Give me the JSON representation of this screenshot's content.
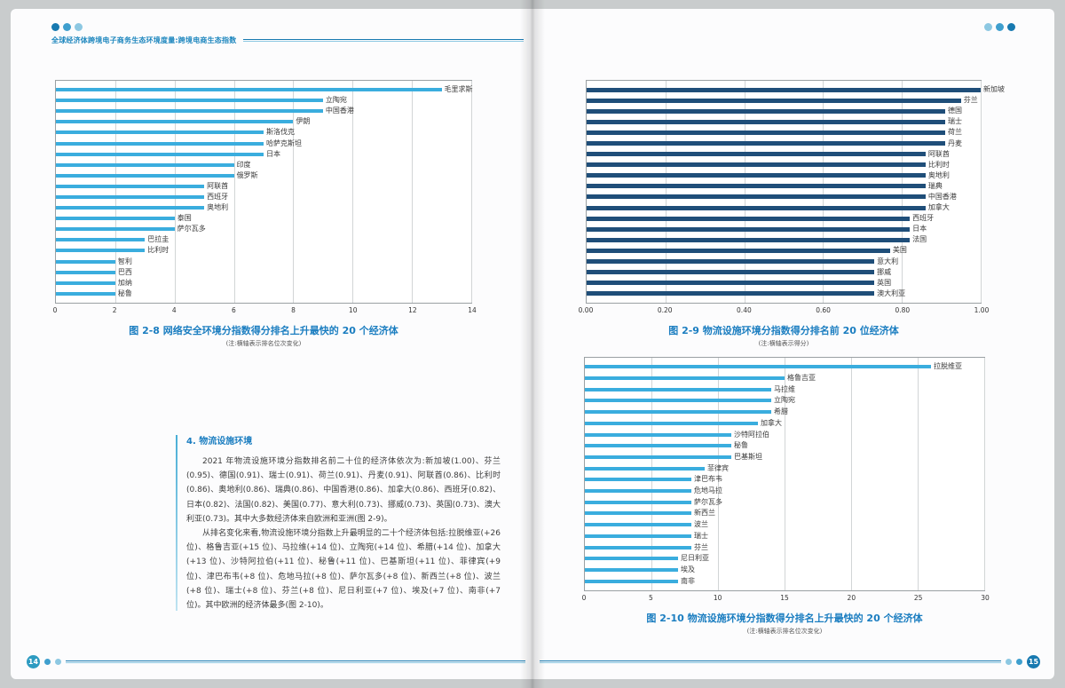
{
  "header": {
    "left_running_title": "全球经济体跨境电子商务生态环境度量:跨境电商生态指数"
  },
  "section": {
    "title": "4. 物流设施环境",
    "paragraphs": [
      "2021 年物流设施环境分指数排名前二十位的经济体依次为:新加坡(1.00)、芬兰(0.95)、德国(0.91)、瑞士(0.91)、荷兰(0.91)、丹麦(0.91)、阿联酋(0.86)、比利时(0.86)、奥地利(0.86)、瑞典(0.86)、中国香港(0.86)、加拿大(0.86)、西班牙(0.82)、日本(0.82)、法国(0.82)、美国(0.77)、意大利(0.73)、挪威(0.73)、英国(0.73)、澳大利亚(0.73)。其中大多数经济体来自欧洲和亚洲(图 2-9)。",
      "从排名变化来看,物流设施环境分指数上升最明显的二十个经济体包括:拉脱维亚(+26 位)、格鲁吉亚(+15 位)、马拉维(+14 位)、立陶宛(+14 位)、希腊(+14 位)、加拿大(+13 位)、沙特阿拉伯(+11 位)、秘鲁(+11 位)、巴基斯坦(+11 位)、菲律宾(+9 位)、津巴布韦(+8 位)、危地马拉(+8 位)、萨尔瓦多(+8 位)、新西兰(+8 位)、波兰(+8 位)、瑞士(+8 位)、芬兰(+8 位)、尼日利亚(+7 位)、埃及(+7 位)、南非(+7 位)。其中欧洲的经济体最多(图 2-10)。"
    ]
  },
  "footer": {
    "left_page_number": "14",
    "right_page_number": "15"
  },
  "colors": {
    "accent_teal": "#2d9bc1",
    "accent_dark_blue": "#1779b0",
    "accent_light_blue": "#8dc8e2",
    "caption_blue": "#1a7dc0",
    "bar_light_blue": "#3aadde",
    "bar_dark_blue": "#1f4e79"
  },
  "chart_data": [
    {
      "id": "figure-2-8",
      "type": "bar",
      "orientation": "horizontal",
      "title": "图 2-8 网络安全环境分指数得分排名上升最快的 20 个经济体",
      "note": "(注:横轴表示排名位次变化)",
      "categories": [
        "毛里求斯",
        "立陶宛",
        "中国香港",
        "伊朗",
        "斯洛伐克",
        "哈萨克斯坦",
        "日本",
        "印度",
        "俄罗斯",
        "阿联酋",
        "西班牙",
        "奥地利",
        "泰国",
        "萨尔瓦多",
        "巴拉圭",
        "比利时",
        "智利",
        "巴西",
        "加纳",
        "秘鲁"
      ],
      "values": [
        13,
        9,
        9,
        8,
        7,
        7,
        7,
        6,
        6,
        5,
        5,
        5,
        4,
        4,
        3,
        3,
        2,
        2,
        2,
        2
      ],
      "xlim": [
        0,
        14
      ],
      "xticks": [
        "0",
        "2",
        "4",
        "6",
        "8",
        "10",
        "12",
        "14"
      ],
      "bar_color": "#3aadde",
      "grid": true,
      "legend": "none"
    },
    {
      "id": "figure-2-9",
      "type": "bar",
      "orientation": "horizontal",
      "title": "图 2-9 物流设施环境分指数得分排名前 20 位经济体",
      "note": "(注:横轴表示得分)",
      "categories": [
        "新加坡",
        "芬兰",
        "德国",
        "瑞士",
        "荷兰",
        "丹麦",
        "阿联酋",
        "比利时",
        "奥地利",
        "瑞典",
        "中国香港",
        "加拿大",
        "西班牙",
        "日本",
        "法国",
        "美国",
        "意大利",
        "挪威",
        "英国",
        "澳大利亚"
      ],
      "values": [
        1.0,
        0.95,
        0.91,
        0.91,
        0.91,
        0.91,
        0.86,
        0.86,
        0.86,
        0.86,
        0.86,
        0.86,
        0.82,
        0.82,
        0.82,
        0.77,
        0.73,
        0.73,
        0.73,
        0.73
      ],
      "xlim": [
        0,
        1
      ],
      "xticks": [
        "0.00",
        "0.20",
        "0.40",
        "0.60",
        "0.80",
        "1.00"
      ],
      "bar_color": "#1f4e79",
      "grid": true,
      "legend": "none"
    },
    {
      "id": "figure-2-10",
      "type": "bar",
      "orientation": "horizontal",
      "title": "图 2-10 物流设施环境分指数得分排名上升最快的 20 个经济体",
      "note": "(注:横轴表示排名位次变化)",
      "categories": [
        "拉脱维亚",
        "格鲁吉亚",
        "马拉维",
        "立陶宛",
        "希腊",
        "加拿大",
        "沙特阿拉伯",
        "秘鲁",
        "巴基斯坦",
        "菲律宾",
        "津巴布韦",
        "危地马拉",
        "萨尔瓦多",
        "新西兰",
        "波兰",
        "瑞士",
        "芬兰",
        "尼日利亚",
        "埃及",
        "南非"
      ],
      "values": [
        26,
        15,
        14,
        14,
        14,
        13,
        11,
        11,
        11,
        9,
        8,
        8,
        8,
        8,
        8,
        8,
        8,
        7,
        7,
        7
      ],
      "xlim": [
        0,
        30
      ],
      "xticks": [
        "0",
        "5",
        "10",
        "15",
        "20",
        "25",
        "30"
      ],
      "bar_color": "#3aadde",
      "grid": true,
      "legend": "none"
    }
  ]
}
